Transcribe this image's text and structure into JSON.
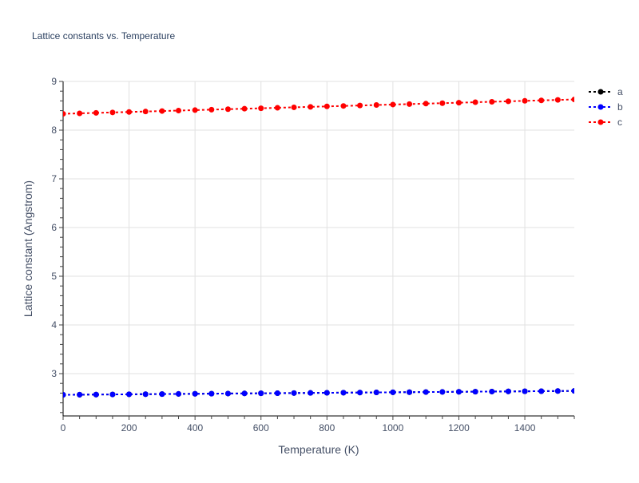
{
  "chart_data": {
    "type": "line",
    "title": "Lattice constants vs. Temperature",
    "xlabel": "Temperature (K)",
    "ylabel": "Lattice constant (Angstrom)",
    "xlim": [
      0,
      1550
    ],
    "ylim": [
      2.12,
      9.0
    ],
    "xticks": [
      0,
      200,
      400,
      600,
      800,
      1000,
      1200,
      1400
    ],
    "yticks": [
      3,
      4,
      5,
      6,
      7,
      8,
      9
    ],
    "grid": true,
    "legend_position": "top-right outside",
    "x": [
      0,
      50,
      100,
      150,
      200,
      250,
      300,
      350,
      400,
      450,
      500,
      550,
      600,
      650,
      700,
      750,
      800,
      850,
      900,
      950,
      1000,
      1050,
      1100,
      1150,
      1200,
      1250,
      1300,
      1350,
      1400,
      1450,
      1500,
      1550
    ],
    "series": [
      {
        "name": "a",
        "color": "#000000",
        "start": 2.565,
        "end": 2.645
      },
      {
        "name": "b",
        "color": "#0000ff",
        "start": 2.565,
        "end": 2.645
      },
      {
        "name": "c",
        "color": "#ff0000",
        "start": 8.335,
        "end": 8.63
      }
    ]
  }
}
